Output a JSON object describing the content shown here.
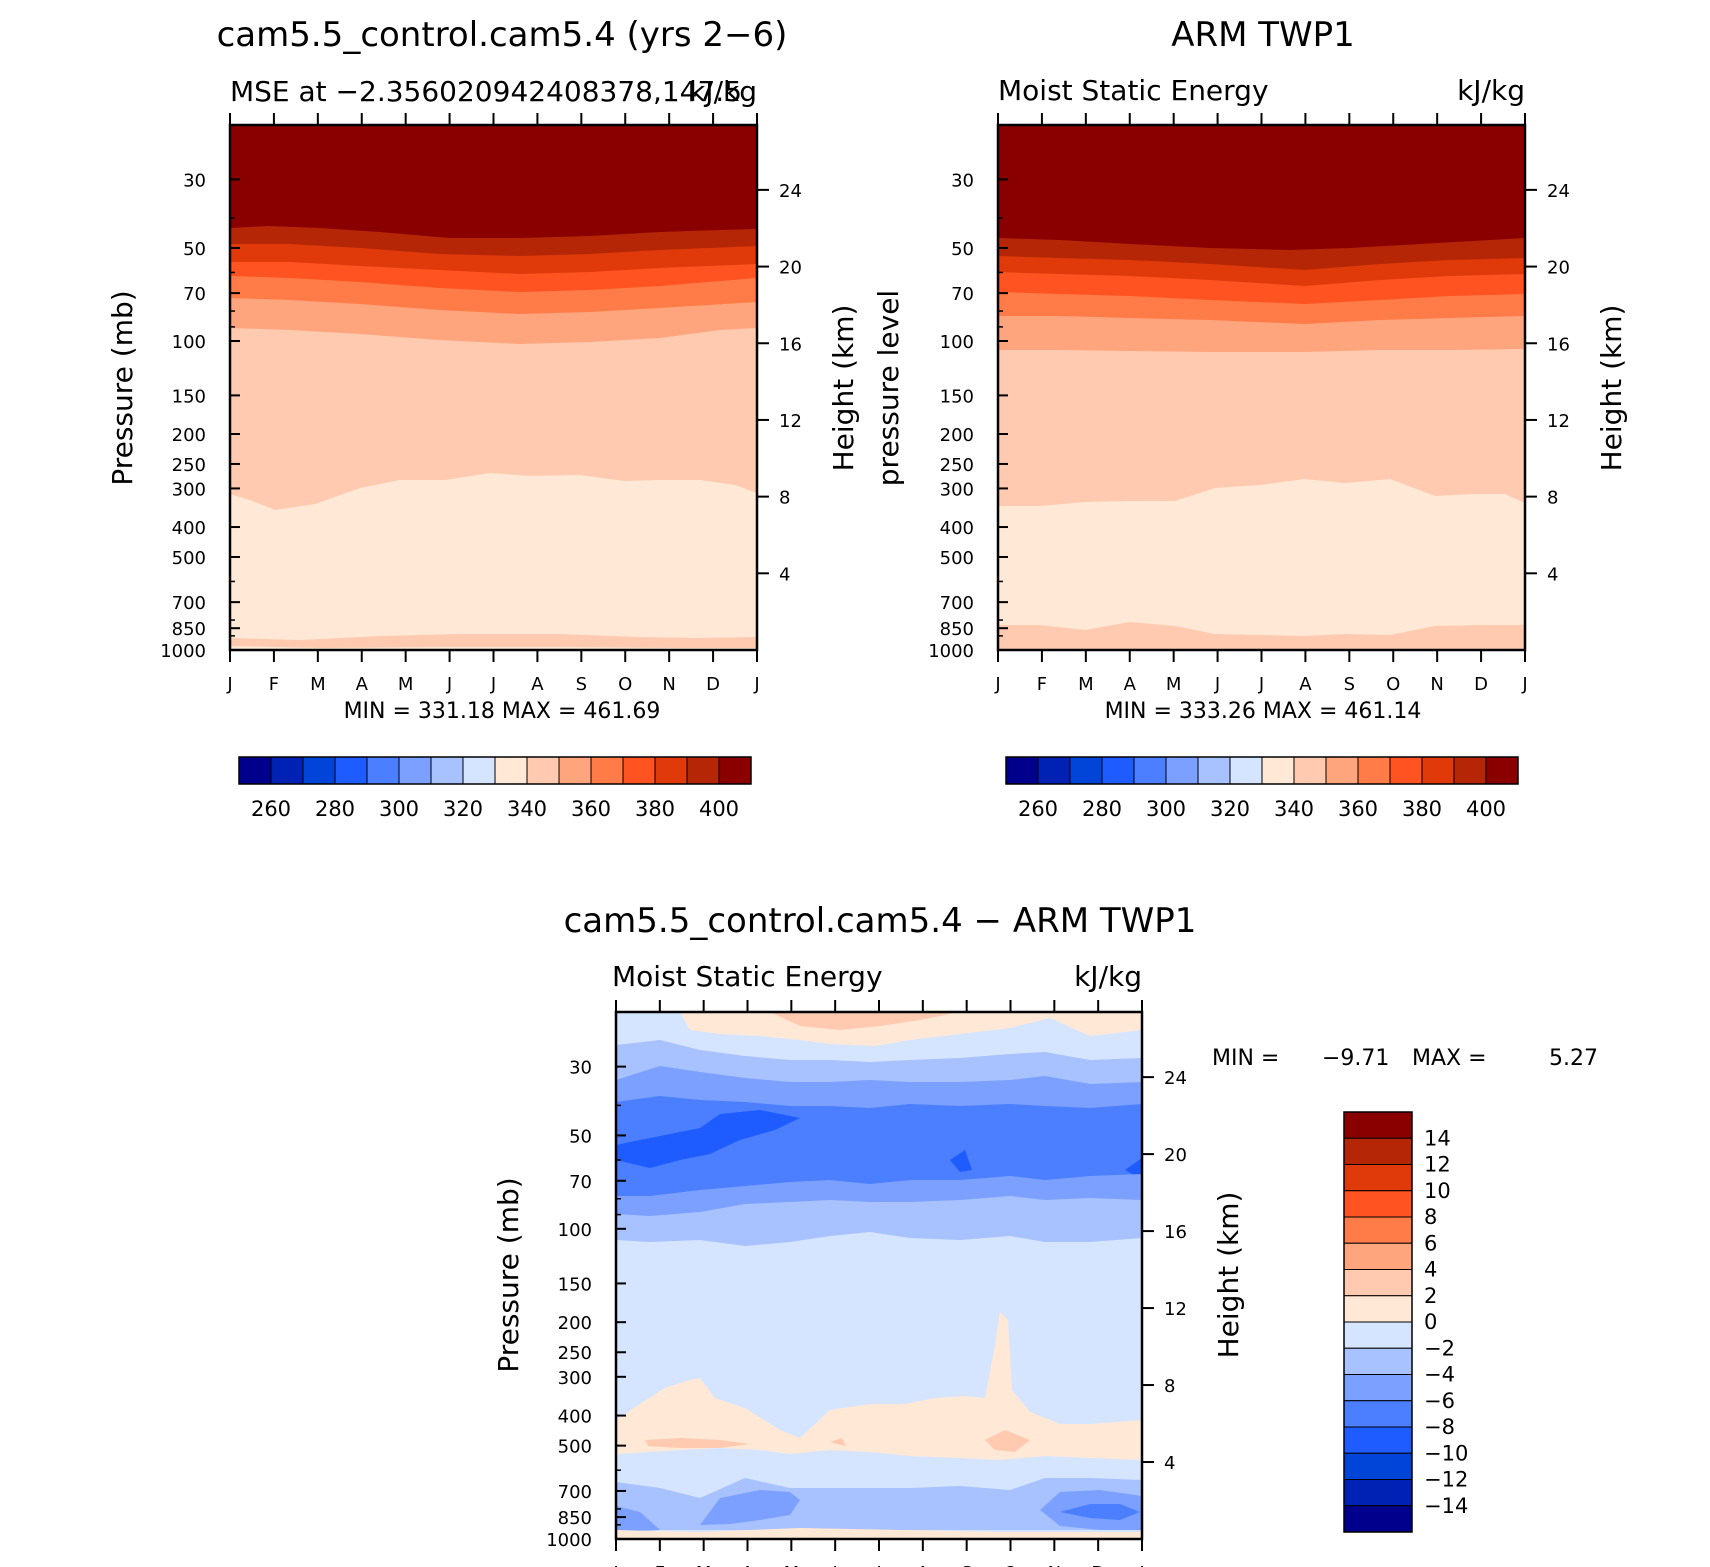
{
  "figure": {
    "panels": [
      {
        "id": "model",
        "title": "cam5.5_control.cam5.4 (yrs 2−6)",
        "subtitle_left": "MSE at −2.356020942408378,147.5",
        "subtitle_right": "kJ/kg",
        "ylabel_left": "Pressure (mb)",
        "ylabel_right": "Height (km)",
        "minmax": "MIN = 331.18 MAX = 461.69"
      },
      {
        "id": "obs",
        "title": "ARM TWP1",
        "subtitle_left": "Moist Static Energy",
        "subtitle_right": "kJ/kg",
        "ylabel_left": "pressure level",
        "ylabel_right": "Height (km)",
        "minmax": "MIN = 333.26 MAX = 461.14"
      },
      {
        "id": "diff",
        "title": "cam5.5_control.cam5.4 − ARM TWP1",
        "subtitle_left": "Moist Static Energy",
        "subtitle_right": "kJ/kg",
        "ylabel_left": "Pressure (mb)",
        "ylabel_right": "Height (km)",
        "minmax_min_label": "MIN =",
        "minmax_min_value": "−9.71",
        "minmax_max_label": "MAX =",
        "minmax_max_value": "5.27"
      }
    ]
  },
  "chart_data": [
    {
      "type": "contour",
      "panel": "model",
      "x_ticks": [
        "J",
        "F",
        "M",
        "A",
        "M",
        "J",
        "J",
        "A",
        "S",
        "O",
        "N",
        "D",
        "J"
      ],
      "y_ticks_pressure": [
        "30",
        "50",
        "70",
        "100",
        "150",
        "200",
        "250",
        "300",
        "400",
        "500",
        "700",
        "850",
        "1000"
      ],
      "y_ticks_height": [
        "24",
        "20",
        "16",
        "12",
        "8",
        "4"
      ],
      "contour_levels": [
        260,
        270,
        280,
        290,
        300,
        310,
        320,
        330,
        340,
        350,
        360,
        370,
        380,
        390,
        400
      ],
      "colorbar_labels": [
        "260",
        "280",
        "300",
        "320",
        "340",
        "360",
        "380",
        "400"
      ],
      "colorbar_colors": [
        "#00008c",
        "#0022b4",
        "#0044d8",
        "#1e5cff",
        "#4b7fff",
        "#7ba0ff",
        "#a8c1ff",
        "#d6e5ff",
        "#ffe8d6",
        "#ffcab0",
        "#ffa57e",
        "#ff7c48",
        "#ff5321",
        "#e03a0a",
        "#b52607",
        "#8a0000"
      ],
      "min": 331.18,
      "max": 461.69
    },
    {
      "type": "contour",
      "panel": "obs",
      "x_ticks": [
        "J",
        "F",
        "M",
        "A",
        "M",
        "J",
        "J",
        "A",
        "S",
        "O",
        "N",
        "D",
        "J"
      ],
      "y_ticks_pressure": [
        "30",
        "50",
        "70",
        "100",
        "150",
        "200",
        "250",
        "300",
        "400",
        "500",
        "700",
        "850",
        "1000"
      ],
      "y_ticks_height": [
        "24",
        "20",
        "16",
        "12",
        "8",
        "4"
      ],
      "contour_levels": [
        260,
        270,
        280,
        290,
        300,
        310,
        320,
        330,
        340,
        350,
        360,
        370,
        380,
        390,
        400
      ],
      "colorbar_labels": [
        "260",
        "280",
        "300",
        "320",
        "340",
        "360",
        "380",
        "400"
      ],
      "colorbar_colors": [
        "#00008c",
        "#0022b4",
        "#0044d8",
        "#1e5cff",
        "#4b7fff",
        "#7ba0ff",
        "#a8c1ff",
        "#d6e5ff",
        "#ffe8d6",
        "#ffcab0",
        "#ffa57e",
        "#ff7c48",
        "#ff5321",
        "#e03a0a",
        "#b52607",
        "#8a0000"
      ],
      "min": 333.26,
      "max": 461.14
    },
    {
      "type": "contour",
      "panel": "diff",
      "x_ticks": [
        "J",
        "F",
        "M",
        "A",
        "M",
        "J",
        "J",
        "A",
        "S",
        "O",
        "N",
        "D",
        "J"
      ],
      "y_ticks_pressure": [
        "30",
        "50",
        "70",
        "100",
        "150",
        "200",
        "250",
        "300",
        "400",
        "500",
        "700",
        "850",
        "1000"
      ],
      "y_ticks_height": [
        "24",
        "20",
        "16",
        "12",
        "8",
        "4"
      ],
      "contour_levels": [
        -14,
        -12,
        -10,
        -8,
        -6,
        -4,
        -2,
        0,
        2,
        4,
        6,
        8,
        10,
        12,
        14
      ],
      "colorbar_labels": [
        "14",
        "12",
        "10",
        "8",
        "6",
        "4",
        "2",
        "0",
        "−2",
        "−4",
        "−6",
        "−8",
        "−10",
        "−12",
        "−14"
      ],
      "colorbar_colors": [
        "#8a0000",
        "#b52607",
        "#e03a0a",
        "#ff5321",
        "#ff7c48",
        "#ffa57e",
        "#ffcab0",
        "#ffe8d6",
        "#d6e5ff",
        "#a8c1ff",
        "#7ba0ff",
        "#4b7fff",
        "#1e5cff",
        "#0044d8",
        "#0022b4",
        "#00008c"
      ],
      "min": -9.71,
      "max": 5.27
    }
  ]
}
